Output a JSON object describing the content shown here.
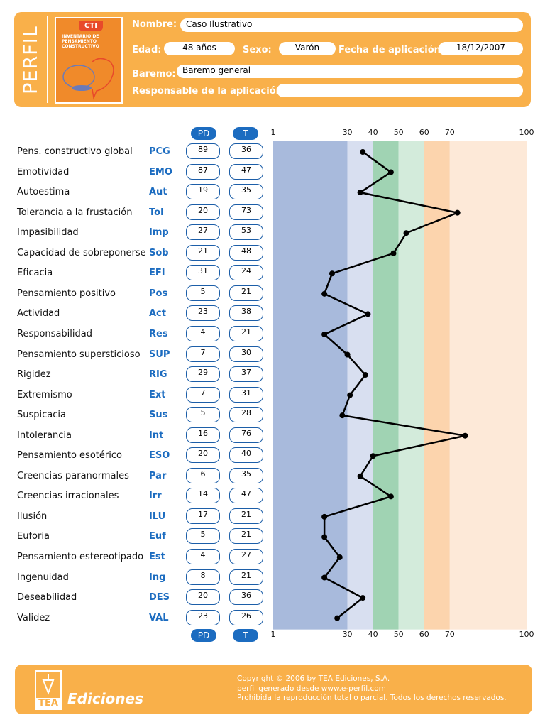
{
  "header": {
    "title": "PERFIL",
    "cover_badge": "CTI",
    "cover_text": "INVENTARIO DE PENSAMIENTO CONSTRUCTIVO",
    "nombre_label": "Nombre:",
    "nombre": "Caso Ilustrativo",
    "edad_label": "Edad:",
    "edad": "48 años",
    "sexo_label": "Sexo:",
    "sexo": "Varón",
    "fecha_label": "Fecha de aplicación:",
    "fecha": "18/12/2007",
    "baremo_label": "Baremo:",
    "baremo": "Baremo general",
    "responsable_label": "Responsable de la aplicación:",
    "responsable": ""
  },
  "columns": {
    "pd": "PD",
    "t": "T"
  },
  "chart_data": {
    "type": "line",
    "xlim": [
      1,
      100
    ],
    "ticks": [
      "1",
      "30",
      "40",
      "50",
      "60",
      "70",
      "100"
    ],
    "tick_values": [
      1,
      30,
      40,
      50,
      60,
      70,
      100
    ],
    "bands": [
      {
        "from": 1,
        "to": 30,
        "color": "#a8badc"
      },
      {
        "from": 30,
        "to": 40,
        "color": "#d8dff0"
      },
      {
        "from": 40,
        "to": 50,
        "color": "#a0d3b3"
      },
      {
        "from": 50,
        "to": 60,
        "color": "#d3ebdb"
      },
      {
        "from": 60,
        "to": 70,
        "color": "#fcd4ad"
      },
      {
        "from": 70,
        "to": 100,
        "color": "#fde9d8"
      }
    ],
    "rows": [
      {
        "name": "Pens. constructivo global",
        "code": "PCG",
        "pd": "89",
        "t": 36
      },
      {
        "name": "Emotividad",
        "code": "EMO",
        "pd": "87",
        "t": 47
      },
      {
        "name": "Autoestima",
        "code": "Aut",
        "pd": "19",
        "t": 35
      },
      {
        "name": "Tolerancia a la frustación",
        "code": "Tol",
        "pd": "20",
        "t": 73
      },
      {
        "name": "Impasibilidad",
        "code": "Imp",
        "pd": "27",
        "t": 53
      },
      {
        "name": "Capacidad de sobreponerse",
        "code": "Sob",
        "pd": "21",
        "t": 48
      },
      {
        "name": "Eficacia",
        "code": "EFI",
        "pd": "31",
        "t": 24
      },
      {
        "name": "Pensamiento positivo",
        "code": "Pos",
        "pd": "5",
        "t": 21
      },
      {
        "name": "Actividad",
        "code": "Act",
        "pd": "23",
        "t": 38
      },
      {
        "name": "Responsabilidad",
        "code": "Res",
        "pd": "4",
        "t": 21
      },
      {
        "name": "Pensamiento supersticioso",
        "code": "SUP",
        "pd": "7",
        "t": 30
      },
      {
        "name": "Rigidez",
        "code": "RIG",
        "pd": "29",
        "t": 37
      },
      {
        "name": "Extremismo",
        "code": "Ext",
        "pd": "7",
        "t": 31
      },
      {
        "name": "Suspicacia",
        "code": "Sus",
        "pd": "5",
        "t": 28
      },
      {
        "name": "Intolerancia",
        "code": "Int",
        "pd": "16",
        "t": 76
      },
      {
        "name": "Pensamiento esotérico",
        "code": "ESO",
        "pd": "20",
        "t": 40
      },
      {
        "name": "Creencias paranormales",
        "code": "Par",
        "pd": "6",
        "t": 35
      },
      {
        "name": "Creencias irracionales",
        "code": "Irr",
        "pd": "14",
        "t": 47
      },
      {
        "name": "Ilusión",
        "code": "ILU",
        "pd": "17",
        "t": 21
      },
      {
        "name": "Euforia",
        "code": "Euf",
        "pd": "5",
        "t": 21
      },
      {
        "name": "Pensamiento estereotipado",
        "code": "Est",
        "pd": "4",
        "t": 27
      },
      {
        "name": "Ingenuidad",
        "code": "Ing",
        "pd": "8",
        "t": 21
      },
      {
        "name": "Deseabilidad",
        "code": "DES",
        "pd": "20",
        "t": 36
      },
      {
        "name": "Validez",
        "code": "VAL",
        "pd": "23",
        "t": 26
      }
    ]
  },
  "footer": {
    "brand": "Ediciones",
    "logo_text": "TEA",
    "line1": "Copyright © 2006 by TEA Ediciones, S.A.",
    "line2": "perfil generado desde www.e-perfil.com",
    "line3": "Prohibida la reproducción total o parcial. Todos los derechos reservados."
  }
}
